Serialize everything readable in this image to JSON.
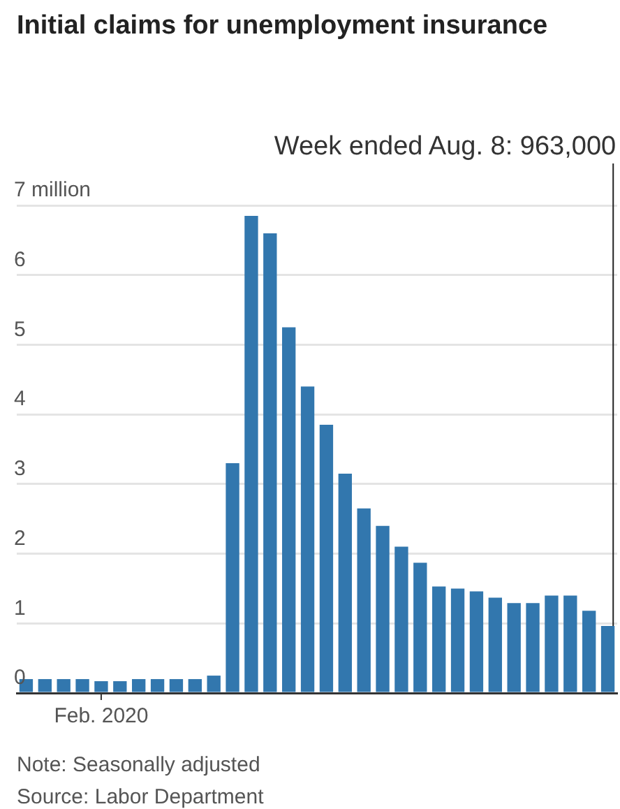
{
  "chart_data": {
    "type": "bar",
    "title": "Initial claims for unemployment insurance",
    "categories": [
      null,
      null,
      null,
      null,
      "Feb. 2020",
      null,
      null,
      null,
      null,
      null,
      null,
      null,
      null,
      null,
      null,
      null,
      null,
      null,
      null,
      null,
      null,
      null,
      null,
      null,
      null,
      null,
      null,
      null,
      null,
      null,
      null,
      null
    ],
    "values": [
      0.2,
      0.2,
      0.2,
      0.2,
      0.17,
      0.17,
      0.2,
      0.2,
      0.2,
      0.2,
      0.25,
      3.3,
      6.85,
      6.6,
      5.25,
      4.4,
      3.85,
      3.15,
      2.65,
      2.4,
      2.1,
      1.87,
      1.53,
      1.5,
      1.46,
      1.37,
      1.29,
      1.29,
      1.4,
      1.4,
      1.18,
      0.963
    ],
    "color": "#3277ae",
    "ylim": [
      0,
      7
    ],
    "yticks": [
      0,
      1,
      2,
      3,
      4,
      5,
      6,
      {
        "value": 7,
        "label": "7 million"
      }
    ],
    "grid": "y",
    "legend": false,
    "annotations": [
      "Week ended Aug. 8: 963,000",
      "Note: Seasonally adjusted",
      "Source: Labor Department"
    ]
  }
}
